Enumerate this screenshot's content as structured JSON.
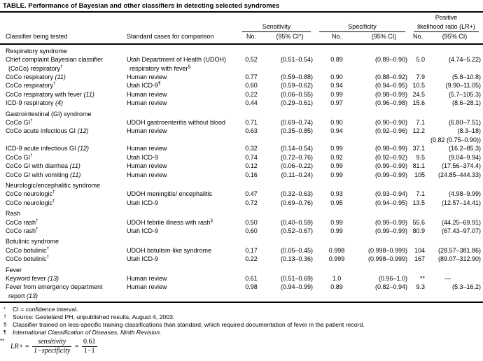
{
  "title": "TABLE. Performance of Bayesian and other classifiers in detecting selected syndromes",
  "header": {
    "classifier": "Classifier being tested",
    "standard": "Standard cases for comparison",
    "sensitivity_group": "Sensitivity",
    "specificity_group": "Specificity",
    "lr_group_line1": "Positive",
    "lr_group_line2": "likelihood ratio (LR+)",
    "sens_no": "No.",
    "sens_ci": "(95% CI*)",
    "spec_no": "No.",
    "spec_ci": "(95% CI)",
    "lr_no": "No.",
    "lr_ci": "(95% CI)"
  },
  "sections": [
    {
      "name": "Respiratory syndrome",
      "rows": [
        {
          "classifier": [
            "Chief complaint Bayesian classifier",
            "(CoCo) respiratory†"
          ],
          "standard": [
            "Utah Department of Health (UDOH)",
            "respiratory with fever§"
          ],
          "sens_no": "0.52",
          "sens_ci": "(0.51–0.54)",
          "spec_no": "0.89",
          "spec_ci": "(0.89–0.90)",
          "lr_no": "5.0",
          "lr_ci": "(4.74–5.22)"
        },
        {
          "classifier": [
            "CoCo respiratory (11)"
          ],
          "standard": [
            "Human review"
          ],
          "sens_no": "0.77",
          "sens_ci": "(0.59–0.88)",
          "spec_no": "0.90",
          "spec_ci": "(0.88–0.92)",
          "lr_no": "7.9",
          "lr_ci": "(5.8–10.8)"
        },
        {
          "classifier": [
            "CoCo respiratory†"
          ],
          "standard": [
            "Utah ICD-9¶"
          ],
          "sens_no": "0.60",
          "sens_ci": "(0.59–0.62)",
          "spec_no": "0.94",
          "spec_ci": "(0.94–0.95)",
          "lr_no": "10.5",
          "lr_ci": "(9.90–11.05)"
        },
        {
          "classifier": [
            "CoCo respiratory with fever (11)"
          ],
          "standard": [
            "Human review"
          ],
          "sens_no": "0.22",
          "sens_ci": "(0.06–0.55)",
          "spec_no": "0.99",
          "spec_ci": "(0.98–0.99)",
          "lr_no": "24.5",
          "lr_ci": "(5.7–105.3)"
        },
        {
          "classifier": [
            "ICD-9 respiratory (4)"
          ],
          "standard": [
            "Human review"
          ],
          "sens_no": "0.44",
          "sens_ci": "(0.29–0.61)",
          "spec_no": "0.97",
          "spec_ci": "(0.96–0.98)",
          "lr_no": "15.6",
          "lr_ci": "(8.6–28.1)"
        }
      ]
    },
    {
      "name": "Gastrointestinal (GI) syndrome",
      "rows": [
        {
          "classifier": [
            "CoCo GI†"
          ],
          "standard": [
            "UDOH gastroenteritis without blood"
          ],
          "sens_no": "0.71",
          "sens_ci": "(0.69–0.74)",
          "spec_no": "0.90",
          "spec_ci": "(0.90–0.90)",
          "lr_no": "7.1",
          "lr_ci": "(6.80–7.51)"
        },
        {
          "classifier": [
            "CoCo acute infectious GI (12)"
          ],
          "standard": [
            "Human review"
          ],
          "sens_no": "0.63",
          "sens_ci": "(0.35–0.85)",
          "spec_no": "0.94",
          "spec_ci": "(0.92–0.96)",
          "lr_no": "12.2",
          "lr_ci": "(8.3–18)",
          "lr_extra": "(0.82 (0.75–0.90))"
        },
        {
          "classifier": [
            "ICD-9 acute infectious GI (12)"
          ],
          "standard": [
            "Human review"
          ],
          "sens_no": "0.32",
          "sens_ci": "(0.14–0.54)",
          "spec_no": "0.99",
          "spec_ci": "(0.98–0.99)",
          "lr_no": "37.1",
          "lr_ci": "(16.2–85.3)"
        },
        {
          "classifier": [
            "CoCo GI†"
          ],
          "standard": [
            "Utah ICD-9"
          ],
          "sens_no": "0.74",
          "sens_ci": "(0.72–0.76)",
          "spec_no": "0.92",
          "spec_ci": "(0.92–0.92)",
          "lr_no": "9.5",
          "lr_ci": "(9.04–9.94)"
        },
        {
          "classifier": [
            "CoCo GI with diarrhea (11)"
          ],
          "standard": [
            "Human review"
          ],
          "sens_no": "0.12",
          "sens_ci": "(0.06–0.22)",
          "spec_no": "0.99",
          "spec_ci": "(0.99–0.99)",
          "lr_no": "81.1",
          "lr_ci": "(17.56–374.4)"
        },
        {
          "classifier": [
            "CoCo GI with vomiting (11)"
          ],
          "standard": [
            "Human review"
          ],
          "sens_no": "0.16",
          "sens_ci": "(0.11–0.24)",
          "spec_no": "0.99",
          "spec_ci": "(0.99–0.99)",
          "lr_no": "105",
          "lr_ci": "(24.85–444.33)"
        }
      ]
    },
    {
      "name": "Neurologic/encephalitic syndrome",
      "rows": [
        {
          "classifier": [
            "CoCo neurologic†"
          ],
          "standard": [
            "UDOH meningitis/ encephalitis"
          ],
          "sens_no": "0.47",
          "sens_ci": "(0.32–0.63)",
          "spec_no": "0.93",
          "spec_ci": "(0.93–0.94)",
          "lr_no": "7.1",
          "lr_ci": "(4.98–9.99)"
        },
        {
          "classifier": [
            "CoCo neurologic†"
          ],
          "standard": [
            "Utah ICD-9"
          ],
          "sens_no": "0.72",
          "sens_ci": "(0.69–0.76)",
          "spec_no": "0.95",
          "spec_ci": "(0.94–0.95)",
          "lr_no": "13.5",
          "lr_ci": "(12.57–14.41)"
        }
      ]
    },
    {
      "name": "Rash",
      "rows": [
        {
          "classifier": [
            "CoCo rash†"
          ],
          "standard": [
            "UDOH febrile illness with rash§"
          ],
          "sens_no": "0.50",
          "sens_ci": "(0.40–0.59)",
          "spec_no": "0.99",
          "spec_ci": "(0.99–0.99)",
          "lr_no": "55.6",
          "lr_ci": "(44.25–69.91)"
        },
        {
          "classifier": [
            "CoCo rash†"
          ],
          "standard": [
            "Utah ICD-9"
          ],
          "sens_no": "0.60",
          "sens_ci": "(0.52–0.67)",
          "spec_no": "0.99",
          "spec_ci": "(0.99–0.99)",
          "lr_no": "80.9",
          "lr_ci": "(67.43–97.07)"
        }
      ]
    },
    {
      "name": "Botulinic syndrome",
      "rows": [
        {
          "classifier": [
            "CoCo botulinic†"
          ],
          "standard": [
            "UDOH botulism-like syndrome"
          ],
          "sens_no": "0.17",
          "sens_ci": "(0.05–0.45)",
          "spec_no": "0.998",
          "spec_ci": "(0.998–0.999)",
          "lr_no": "104",
          "lr_ci": "(28.57–381.86)"
        },
        {
          "classifier": [
            "CoCo botulinic†"
          ],
          "standard": [
            "Utah ICD-9"
          ],
          "sens_no": "0.22",
          "sens_ci": "(0.13–0.36)",
          "spec_no": "0.999",
          "spec_ci": "(0.998–0.999)",
          "lr_no": "167",
          "lr_ci": "(89.07–312.90)"
        }
      ]
    },
    {
      "name": "Fever",
      "rows": [
        {
          "classifier": [
            "Keyword fever (13)"
          ],
          "standard": [
            "Human review"
          ],
          "sens_no": "0.61",
          "sens_ci": "(0.51–0.69)",
          "spec_no": "1.0",
          "spec_ci": "(0.96–1.0)",
          "lr_no": "**",
          "lr_ci": "—"
        },
        {
          "classifier": [
            "Fever from emergency department",
            "report (13)"
          ],
          "standard": [
            "Human review"
          ],
          "sens_no": "0.98",
          "sens_ci": "(0.94–0.99)",
          "spec_no": "0.89",
          "spec_ci": "(0.82–0.94)",
          "lr_no": "9.3",
          "lr_ci": "(5.3–16.2)"
        }
      ]
    }
  ],
  "footnotes": [
    {
      "marker": "*",
      "text": "CI = confidence interval.",
      "italic": false
    },
    {
      "marker": "†",
      "text": "Source: Gesteland PH, unpublished results, August 4, 2003.",
      "italic": false
    },
    {
      "marker": "§",
      "text": "Classifier trained on less-specific training classifications than standard, which required documentation of fever in the patient record.",
      "italic": false
    },
    {
      "marker": "¶",
      "text": "International Classification of Diseases, Ninth Revision.",
      "italic": true
    }
  ],
  "formula": {
    "marker": "**",
    "lhs": "LR+",
    "eq1": "=",
    "frac1_num": "sensitivity",
    "frac1_den": "1−specificity",
    "eq2": "=",
    "frac2_num": "0.61",
    "frac2_den": "1−1"
  }
}
